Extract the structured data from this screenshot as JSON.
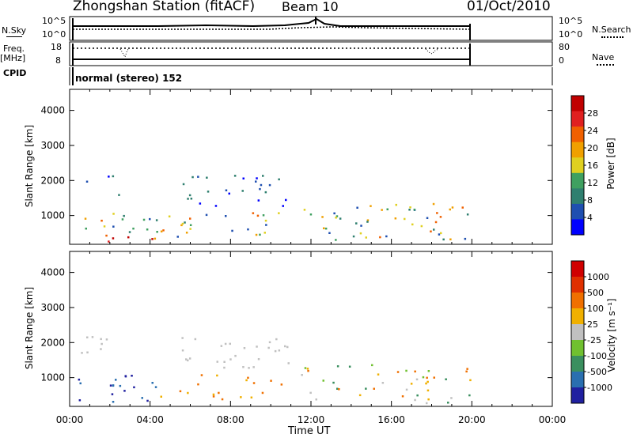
{
  "header": {
    "station": "Zhongshan Station (fitACF)",
    "beam": "Beam 10",
    "date": "01/Oct/2010"
  },
  "strip_labels": {
    "nsky": "N.Sky",
    "freq": "Freq.",
    "mhz": "[MHz]",
    "cpid": "CPID",
    "nsearch": "N.Search",
    "nave": "Nave",
    "cpid_text": "normal (stereo) 152"
  },
  "strip_ticks": {
    "nsky_top": "10^5",
    "nsky_bottom": "10^0",
    "freq_top": "18",
    "freq_bottom": "8",
    "nave_top": "80",
    "nave_bottom": "0"
  },
  "colors": {
    "power_scale": [
      "#0000ff",
      "#1f4fb0",
      "#2f7f6f",
      "#3fa060",
      "#e0d020",
      "#f0a000",
      "#f06000",
      "#e02020",
      "#c00000"
    ],
    "velocity_scale": [
      "#2020a0",
      "#2a6fb0",
      "#3a8f5f",
      "#70c030",
      "#c0c0c0",
      "#f0b000",
      "#f07000",
      "#e03000",
      "#d00000"
    ]
  },
  "chart_data": [
    {
      "type": "heatmap",
      "title": "",
      "xlabel": "Time UT",
      "ylabel": "Slant Range [km]",
      "xlim": [
        "00:00",
        "24:00"
      ],
      "ylim": [
        180,
        4600
      ],
      "x_ticks": [
        "00:00",
        "04:00",
        "08:00",
        "12:00",
        "16:00",
        "20:00",
        "00:00"
      ],
      "y_ticks": [
        1000,
        2000,
        3000,
        4000
      ],
      "colorbar": {
        "label": "Power [dB]",
        "ticks": [
          4,
          8,
          12,
          16,
          20,
          24,
          28
        ]
      },
      "regions": [
        {
          "t0": 0.3,
          "t1": 5.8,
          "r0": 250,
          "r1": 420,
          "level": "high"
        },
        {
          "t0": 0.2,
          "t1": 10.5,
          "r0": 400,
          "r1": 1100,
          "level": "mid"
        },
        {
          "t0": 0.3,
          "t1": 2.5,
          "r0": 1600,
          "r1": 2200,
          "level": "low"
        },
        {
          "t0": 5.5,
          "t1": 11.0,
          "r0": 1300,
          "r1": 2200,
          "level": "low"
        },
        {
          "t0": 11.5,
          "t1": 20.0,
          "r0": 300,
          "r1": 1400,
          "level": "mid"
        }
      ]
    },
    {
      "type": "heatmap",
      "title": "",
      "xlabel": "Time UT",
      "ylabel": "Slant Range [km]",
      "xlim": [
        "00:00",
        "24:00"
      ],
      "ylim": [
        180,
        4600
      ],
      "x_ticks": [
        "00:00",
        "04:00",
        "08:00",
        "12:00",
        "16:00",
        "20:00",
        "00:00"
      ],
      "y_ticks": [
        1000,
        2000,
        3000,
        4000
      ],
      "colorbar": {
        "label": "Velocity [m s⁻¹]",
        "ticks": [
          1000,
          500,
          100,
          25,
          -25,
          -100,
          -500,
          -1000
        ]
      },
      "regions": [
        {
          "t0": 0.3,
          "t1": 4.5,
          "r0": 300,
          "r1": 1100,
          "level": "away"
        },
        {
          "t0": 4.5,
          "t1": 10.5,
          "r0": 400,
          "r1": 1100,
          "level": "toward"
        },
        {
          "t0": 0.3,
          "t1": 2.5,
          "r0": 1600,
          "r1": 2200,
          "level": "zero"
        },
        {
          "t0": 5.5,
          "t1": 11.0,
          "r0": 1300,
          "r1": 2200,
          "level": "zero"
        },
        {
          "t0": 11.5,
          "t1": 20.0,
          "r0": 300,
          "r1": 1400,
          "level": "mixed"
        }
      ]
    }
  ]
}
